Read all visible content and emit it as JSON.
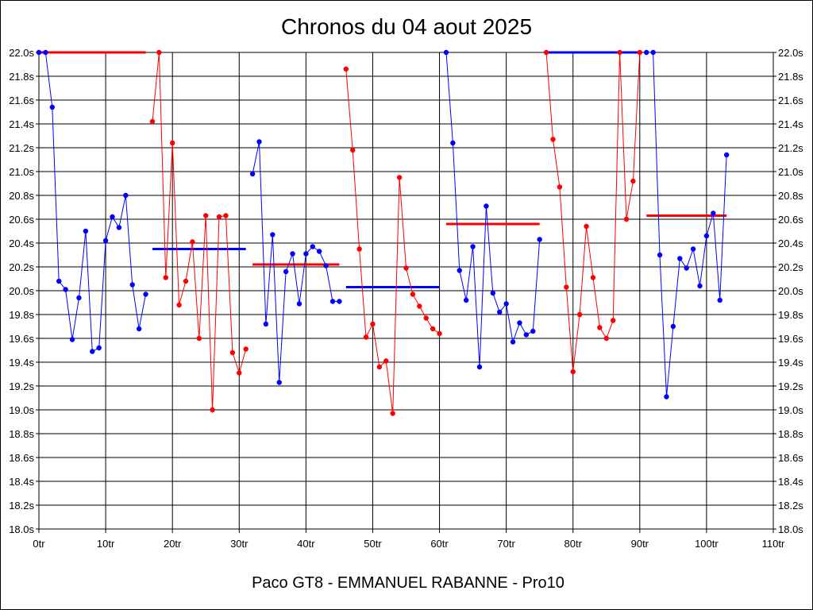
{
  "chart_data": {
    "type": "line",
    "title": "Chronos du 04 aout 2025",
    "xlabel": "Paco GT8 - EMMANUEL RABANNE - Pro10",
    "ylabel": "",
    "xlim": [
      0,
      110
    ],
    "ylim": [
      18.0,
      22.0
    ],
    "grid": true,
    "x_ticks": [
      "0tr",
      "10tr",
      "20tr",
      "30tr",
      "40tr",
      "50tr",
      "60tr",
      "70tr",
      "80tr",
      "90tr",
      "100tr",
      "110tr"
    ],
    "y_ticks": [
      "18.0s",
      "18.2s",
      "18.4s",
      "18.6s",
      "18.8s",
      "19.0s",
      "19.2s",
      "19.4s",
      "19.6s",
      "19.8s",
      "20.0s",
      "20.2s",
      "20.4s",
      "20.6s",
      "20.8s",
      "21.0s",
      "21.2s",
      "21.4s",
      "21.6s",
      "21.8s",
      "22.0s"
    ],
    "series": [
      {
        "color": "#0000ff",
        "points": [
          [
            0,
            22.0
          ],
          [
            1,
            22.0
          ],
          [
            2,
            21.54
          ],
          [
            3,
            20.08
          ],
          [
            4,
            20.01
          ],
          [
            5,
            19.59
          ],
          [
            6,
            19.94
          ],
          [
            7,
            20.5
          ],
          [
            8,
            19.49
          ],
          [
            9,
            19.52
          ],
          [
            10,
            20.42
          ],
          [
            11,
            20.62
          ],
          [
            12,
            20.53
          ],
          [
            13,
            20.8
          ],
          [
            14,
            20.05
          ],
          [
            15,
            19.68
          ],
          [
            16,
            19.97
          ]
        ]
      },
      {
        "color": "#ff0000",
        "points": [
          [
            17,
            21.42
          ],
          [
            18,
            22.0
          ],
          [
            19,
            20.11
          ],
          [
            20,
            21.24
          ],
          [
            21,
            19.88
          ],
          [
            22,
            20.08
          ],
          [
            23,
            20.41
          ],
          [
            24,
            19.6
          ],
          [
            25,
            20.63
          ],
          [
            26,
            19.0
          ],
          [
            27,
            20.62
          ],
          [
            28,
            20.63
          ],
          [
            29,
            19.48
          ],
          [
            30,
            19.31
          ],
          [
            31,
            19.51
          ]
        ]
      },
      {
        "color": "#0000ff",
        "points": [
          [
            32,
            20.98
          ],
          [
            33,
            21.25
          ],
          [
            34,
            19.72
          ],
          [
            35,
            20.47
          ],
          [
            36,
            19.23
          ],
          [
            37,
            20.16
          ],
          [
            38,
            20.31
          ],
          [
            39,
            19.89
          ],
          [
            40,
            20.31
          ],
          [
            41,
            20.37
          ],
          [
            42,
            20.33
          ],
          [
            43,
            20.21
          ],
          [
            44,
            19.91
          ],
          [
            45,
            19.91
          ]
        ]
      },
      {
        "color": "#ff0000",
        "points": [
          [
            46,
            21.86
          ],
          [
            47,
            21.18
          ],
          [
            48,
            20.35
          ],
          [
            49,
            19.61
          ],
          [
            50,
            19.72
          ],
          [
            51,
            19.36
          ],
          [
            52,
            19.41
          ],
          [
            53,
            18.97
          ],
          [
            54,
            20.95
          ],
          [
            55,
            20.19
          ],
          [
            56,
            19.97
          ],
          [
            57,
            19.87
          ],
          [
            58,
            19.77
          ],
          [
            59,
            19.68
          ],
          [
            60,
            19.64
          ]
        ]
      },
      {
        "color": "#0000ff",
        "points": [
          [
            61,
            22.0
          ],
          [
            62,
            21.24
          ],
          [
            63,
            20.17
          ],
          [
            64,
            19.92
          ],
          [
            65,
            20.37
          ],
          [
            66,
            19.36
          ],
          [
            67,
            20.71
          ],
          [
            68,
            19.98
          ],
          [
            69,
            19.82
          ],
          [
            70,
            19.89
          ],
          [
            71,
            19.57
          ],
          [
            72,
            19.73
          ],
          [
            73,
            19.63
          ],
          [
            74,
            19.66
          ],
          [
            75,
            20.43
          ]
        ]
      },
      {
        "color": "#ff0000",
        "points": [
          [
            76,
            22.0
          ],
          [
            77,
            21.27
          ],
          [
            78,
            20.87
          ],
          [
            79,
            20.03
          ],
          [
            80,
            19.32
          ],
          [
            81,
            19.8
          ],
          [
            82,
            20.54
          ],
          [
            83,
            20.11
          ],
          [
            84,
            19.69
          ],
          [
            85,
            19.6
          ],
          [
            86,
            19.75
          ],
          [
            87,
            22.0
          ],
          [
            88,
            20.6
          ],
          [
            89,
            20.92
          ],
          [
            90,
            22.0
          ]
        ]
      },
      {
        "color": "#0000ff",
        "points": [
          [
            91,
            22.0
          ],
          [
            92,
            22.0
          ],
          [
            93,
            20.3
          ],
          [
            94,
            19.11
          ],
          [
            95,
            19.7
          ],
          [
            96,
            20.27
          ],
          [
            97,
            20.19
          ],
          [
            98,
            20.35
          ],
          [
            99,
            20.04
          ],
          [
            100,
            20.46
          ],
          [
            101,
            20.65
          ],
          [
            102,
            19.92
          ],
          [
            103,
            21.14
          ]
        ]
      }
    ],
    "averages": [
      {
        "color": "#ff0000",
        "x": [
          0,
          16
        ],
        "y": 22.0
      },
      {
        "color": "#0000ff",
        "x": [
          17,
          31
        ],
        "y": 20.35
      },
      {
        "color": "#ff0000",
        "x": [
          32,
          45
        ],
        "y": 20.22
      },
      {
        "color": "#0000ff",
        "x": [
          46,
          60
        ],
        "y": 20.03
      },
      {
        "color": "#ff0000",
        "x": [
          61,
          75
        ],
        "y": 20.56
      },
      {
        "color": "#0000ff",
        "x": [
          76,
          90
        ],
        "y": 22.0
      },
      {
        "color": "#ff0000",
        "x": [
          91,
          103
        ],
        "y": 20.63
      }
    ]
  }
}
